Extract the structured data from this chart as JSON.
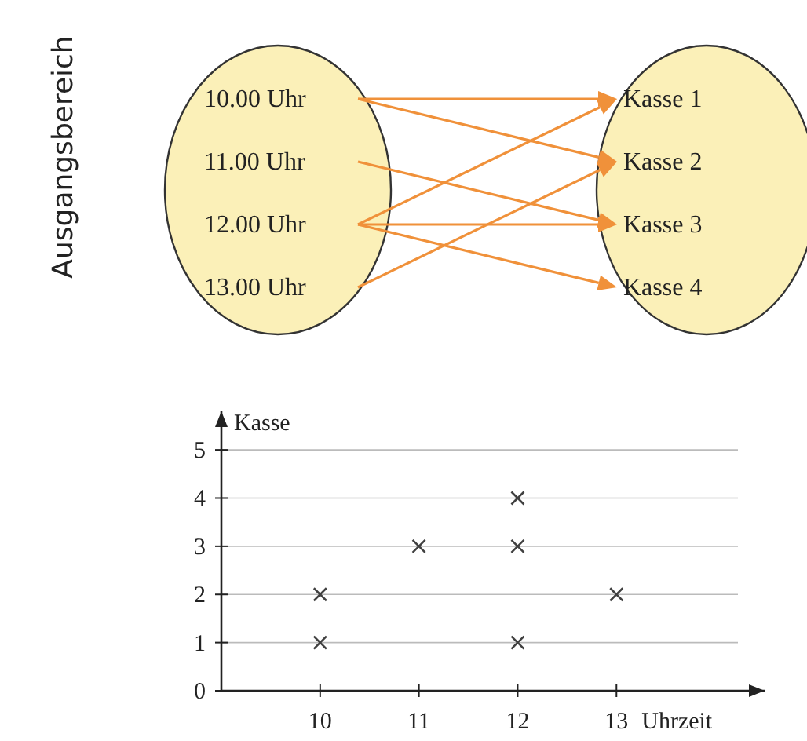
{
  "chart_data": [
    {
      "type": "other",
      "ylabel": "Ausgangsbereich",
      "annotations": [
        "10.00 Uhr",
        "11.00 Uhr",
        "12.00 Uhr",
        "13.00 Uhr",
        "Kasse 1",
        "Kasse 2",
        "Kasse 3",
        "Kasse 4"
      ]
    },
    {
      "type": "scatter",
      "xlabel": "Uhrzeit",
      "ylabel": "Kasse",
      "x": [
        10,
        10,
        11,
        12,
        12,
        12,
        13
      ],
      "values": [
        1,
        2,
        3,
        1,
        3,
        4,
        2
      ],
      "color": "#404040",
      "marker": "cross",
      "xlim": [
        9,
        14.5
      ],
      "ylim": [
        0,
        5.8
      ],
      "xticks": [
        10,
        11,
        12,
        13
      ],
      "yticks": [
        0,
        1,
        2,
        3,
        4,
        5
      ],
      "grid": "y"
    }
  ]
}
